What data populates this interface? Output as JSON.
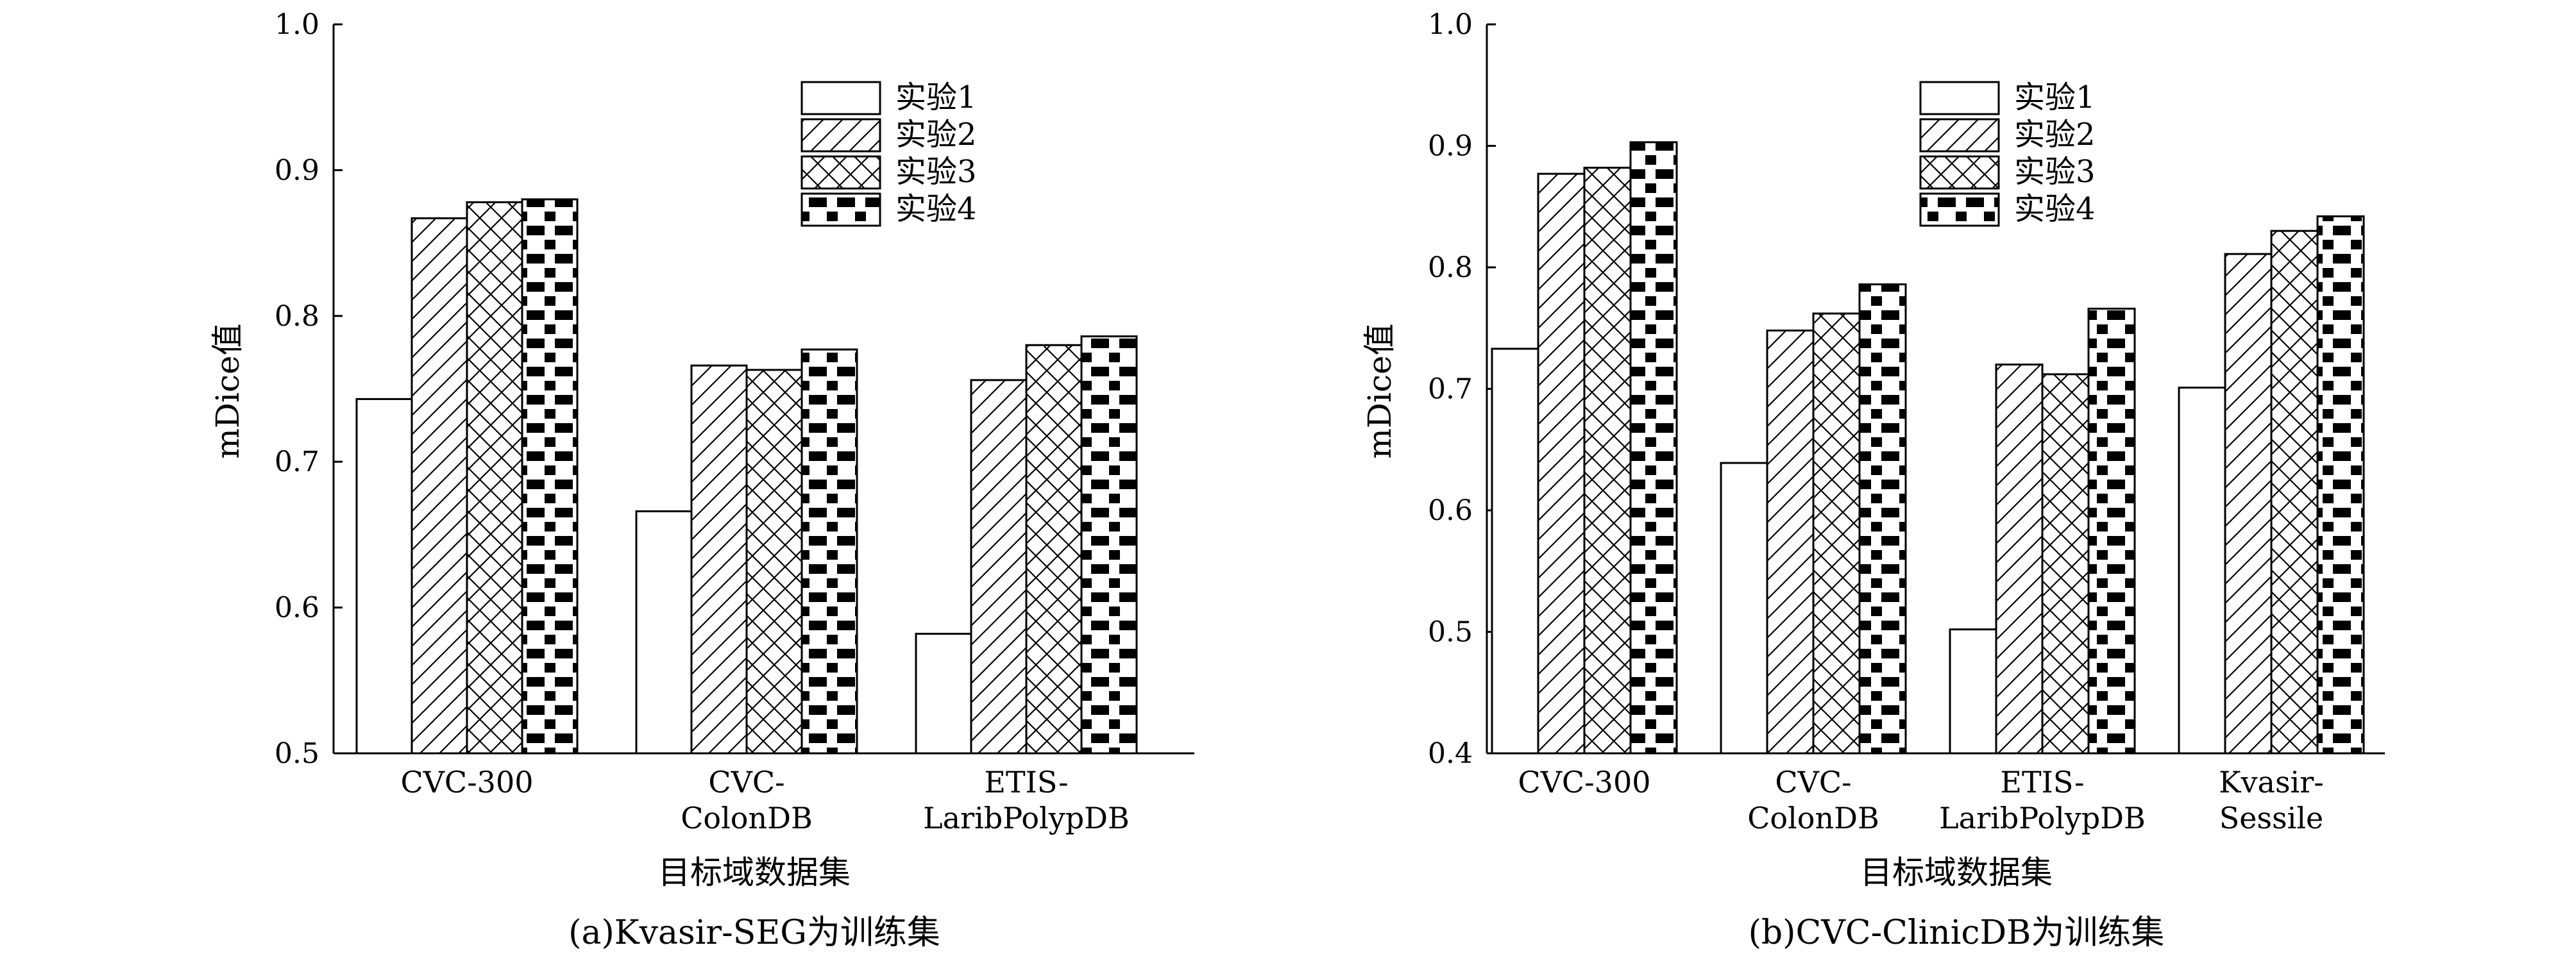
{
  "panels": [
    {
      "caption": "(a)Kvasir-SEG为训练集",
      "chart_data": {
        "type": "bar",
        "categories": [
          "CVC-300",
          "CVC-ColonDB",
          "ETIS-LaribPolypDB"
        ],
        "category_lines": [
          [
            "CVC-300"
          ],
          [
            "CVC-",
            "ColonDB"
          ],
          [
            "ETIS-",
            "LaribPolypDB"
          ]
        ],
        "series": [
          {
            "name": "实验1",
            "values": [
              0.743,
              0.666,
              0.582
            ]
          },
          {
            "name": "实验2",
            "values": [
              0.867,
              0.766,
              0.756
            ]
          },
          {
            "name": "实验3",
            "values": [
              0.878,
              0.763,
              0.78
            ]
          },
          {
            "name": "实验4",
            "values": [
              0.88,
              0.777,
              0.786
            ]
          }
        ],
        "xlabel": "目标域数据集",
        "ylabel": "mDice值",
        "ylim": [
          0.5,
          1.0
        ],
        "yticks": [
          "0.5",
          "0.6",
          "0.7",
          "0.8",
          "0.9",
          "1.0"
        ],
        "legend": "top-right",
        "grid": false
      }
    },
    {
      "caption": "(b)CVC-ClinicDB为训练集",
      "chart_data": {
        "type": "bar",
        "categories": [
          "CVC-300",
          "CVC-ColonDB",
          "ETIS-LaribPolypDB",
          "Kvasir-Sessile"
        ],
        "category_lines": [
          [
            "CVC-300"
          ],
          [
            "CVC-",
            "ColonDB"
          ],
          [
            "ETIS-",
            "LaribPolypDB"
          ],
          [
            "Kvasir-",
            "Sessile"
          ]
        ],
        "series": [
          {
            "name": "实验1",
            "values": [
              0.733,
              0.639,
              0.502,
              0.701
            ]
          },
          {
            "name": "实验2",
            "values": [
              0.877,
              0.748,
              0.72,
              0.811
            ]
          },
          {
            "name": "实验3",
            "values": [
              0.882,
              0.762,
              0.712,
              0.83
            ]
          },
          {
            "name": "实验4",
            "values": [
              0.903,
              0.786,
              0.766,
              0.842
            ]
          }
        ],
        "xlabel": "目标域数据集",
        "ylabel": "mDice值",
        "ylim": [
          0.4,
          1.0
        ],
        "yticks": [
          "0.4",
          "0.5",
          "0.6",
          "0.7",
          "0.8",
          "0.9",
          "1.0"
        ],
        "legend": "top-right",
        "grid": false
      }
    }
  ]
}
